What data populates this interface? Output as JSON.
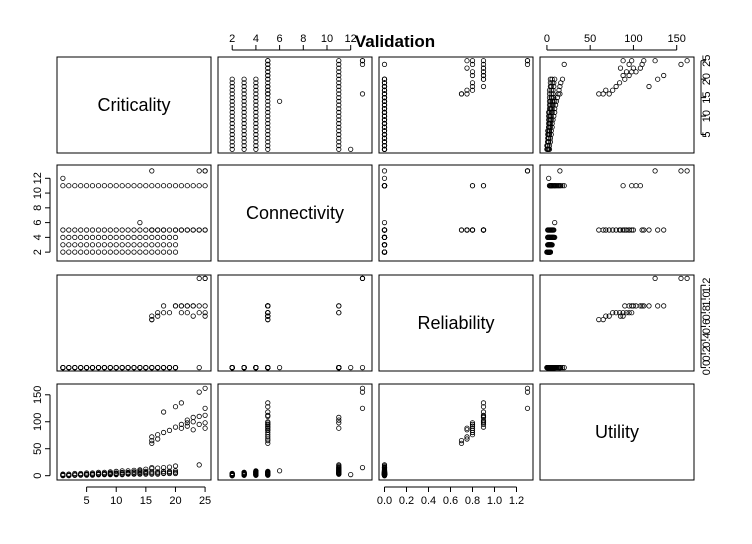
{
  "chart_data": {
    "type": "scatter",
    "title": "Validation",
    "variables": [
      "Criticality",
      "Connectivity",
      "Reliability",
      "Utility"
    ],
    "axes": [
      {
        "range": [
          0,
          26
        ],
        "ticks": [
          5,
          10,
          15,
          20,
          25
        ],
        "tick_labels": [
          "5",
          "10",
          "15",
          "20",
          "25"
        ]
      },
      {
        "range": [
          0.8,
          13.8
        ],
        "ticks": [
          2,
          4,
          6,
          8,
          10,
          12
        ],
        "tick_labels": [
          "2",
          "4",
          "6",
          "8",
          "10",
          "12"
        ]
      },
      {
        "range": [
          -0.05,
          1.35
        ],
        "ticks": [
          0.0,
          0.2,
          0.4,
          0.6,
          0.8,
          1.0,
          1.2
        ],
        "tick_labels": [
          "0.0",
          "0.2",
          "0.4",
          "0.6",
          "0.8",
          "1.0",
          "1.2"
        ]
      },
      {
        "range": [
          -8,
          170
        ],
        "ticks": [
          0,
          50,
          100,
          150
        ],
        "tick_labels": [
          "0",
          "50",
          "100",
          "150"
        ]
      }
    ],
    "axis_placement": {
      "top": [
        1,
        3
      ],
      "bottom": [
        0,
        2
      ],
      "left": [
        1,
        3
      ],
      "right": [
        0,
        2
      ]
    },
    "points": [
      [
        1,
        2,
        0,
        0
      ],
      [
        1,
        3,
        0,
        1
      ],
      [
        1,
        4,
        0,
        1
      ],
      [
        1,
        5,
        0,
        1
      ],
      [
        1,
        11,
        0,
        3
      ],
      [
        1,
        12,
        0,
        2
      ],
      [
        2,
        2,
        0,
        0
      ],
      [
        2,
        3,
        0,
        1
      ],
      [
        2,
        4,
        0,
        1
      ],
      [
        2,
        5,
        0,
        1
      ],
      [
        2,
        11,
        0,
        3
      ],
      [
        3,
        2,
        0,
        1
      ],
      [
        3,
        3,
        0,
        1
      ],
      [
        3,
        4,
        0,
        1
      ],
      [
        3,
        5,
        0,
        2
      ],
      [
        3,
        11,
        0,
        4
      ],
      [
        4,
        2,
        0,
        1
      ],
      [
        4,
        3,
        0,
        2
      ],
      [
        4,
        4,
        0,
        2
      ],
      [
        4,
        5,
        0,
        2
      ],
      [
        4,
        11,
        0,
        4
      ],
      [
        5,
        2,
        0,
        1
      ],
      [
        5,
        3,
        0,
        2
      ],
      [
        5,
        4,
        0,
        2
      ],
      [
        5,
        5,
        0,
        3
      ],
      [
        5,
        11,
        0,
        5
      ],
      [
        6,
        2,
        0,
        1
      ],
      [
        6,
        3,
        0,
        2
      ],
      [
        6,
        4,
        0,
        3
      ],
      [
        6,
        5,
        0,
        3
      ],
      [
        6,
        11,
        0,
        5
      ],
      [
        7,
        2,
        0,
        2
      ],
      [
        7,
        3,
        0,
        2
      ],
      [
        7,
        4,
        0,
        3
      ],
      [
        7,
        5,
        0,
        4
      ],
      [
        7,
        11,
        0,
        6
      ],
      [
        8,
        2,
        0,
        2
      ],
      [
        8,
        3,
        0,
        3
      ],
      [
        8,
        4,
        0,
        3
      ],
      [
        8,
        5,
        0,
        4
      ],
      [
        8,
        11,
        0,
        6
      ],
      [
        9,
        2,
        0,
        2
      ],
      [
        9,
        3,
        0,
        3
      ],
      [
        9,
        4,
        0,
        4
      ],
      [
        9,
        5,
        0,
        5
      ],
      [
        9,
        11,
        0,
        7
      ],
      [
        10,
        2,
        0,
        2
      ],
      [
        10,
        3,
        0,
        3
      ],
      [
        10,
        4,
        0,
        4
      ],
      [
        10,
        5,
        0,
        5
      ],
      [
        10,
        11,
        0,
        8
      ],
      [
        11,
        2,
        0,
        2
      ],
      [
        11,
        3,
        0,
        3
      ],
      [
        11,
        4,
        0,
        5
      ],
      [
        11,
        5,
        0,
        6
      ],
      [
        11,
        11,
        0,
        9
      ],
      [
        12,
        2,
        0,
        3
      ],
      [
        12,
        3,
        0,
        4
      ],
      [
        12,
        4,
        0,
        5
      ],
      [
        12,
        5,
        0,
        6
      ],
      [
        12,
        11,
        0,
        9
      ],
      [
        13,
        2,
        0,
        3
      ],
      [
        13,
        3,
        0,
        4
      ],
      [
        13,
        4,
        0,
        6
      ],
      [
        13,
        5,
        0,
        7
      ],
      [
        13,
        11,
        0,
        10
      ],
      [
        14,
        2,
        0,
        3
      ],
      [
        14,
        3,
        0,
        4
      ],
      [
        14,
        4,
        0,
        6
      ],
      [
        14,
        5,
        0,
        7
      ],
      [
        14,
        6,
        0,
        9
      ],
      [
        14,
        11,
        0,
        11
      ],
      [
        15,
        2,
        0,
        3
      ],
      [
        15,
        3,
        0,
        5
      ],
      [
        15,
        4,
        0,
        6
      ],
      [
        15,
        5,
        0,
        8
      ],
      [
        15,
        11,
        0,
        12
      ],
      [
        16,
        2,
        0,
        3
      ],
      [
        16,
        3,
        0,
        5
      ],
      [
        16,
        4,
        0,
        7
      ],
      [
        16,
        5,
        0.7,
        60
      ],
      [
        16,
        5,
        0.7,
        65
      ],
      [
        16,
        5,
        0.75,
        72
      ],
      [
        16,
        11,
        0,
        13
      ],
      [
        16,
        13,
        0,
        15
      ],
      [
        17,
        2,
        0,
        3
      ],
      [
        17,
        3,
        0,
        5
      ],
      [
        17,
        4,
        0,
        7
      ],
      [
        17,
        5,
        0.75,
        68
      ],
      [
        17,
        5,
        0.8,
        76
      ],
      [
        17,
        11,
        0,
        14
      ],
      [
        18,
        2,
        0,
        4
      ],
      [
        18,
        3,
        0,
        5
      ],
      [
        18,
        4,
        0,
        8
      ],
      [
        18,
        5,
        0.8,
        80
      ],
      [
        18,
        5,
        0.9,
        118
      ],
      [
        18,
        11,
        0,
        15
      ],
      [
        19,
        2,
        0,
        4
      ],
      [
        19,
        3,
        0,
        6
      ],
      [
        19,
        4,
        0,
        8
      ],
      [
        19,
        5,
        0.8,
        84
      ],
      [
        19,
        11,
        0,
        16
      ],
      [
        20,
        2,
        0,
        4
      ],
      [
        20,
        3,
        0,
        6
      ],
      [
        20,
        4,
        0,
        9
      ],
      [
        20,
        5,
        0.9,
        90
      ],
      [
        20,
        5,
        0.9,
        128
      ],
      [
        20,
        11,
        0,
        18
      ],
      [
        21,
        5,
        0.9,
        95
      ],
      [
        21,
        5,
        0.9,
        135
      ],
      [
        21,
        11,
        0.8,
        88
      ],
      [
        22,
        5,
        0.8,
        92
      ],
      [
        22,
        5,
        0.9,
        98
      ],
      [
        22,
        11,
        0.9,
        103
      ],
      [
        23,
        5,
        0.75,
        85
      ],
      [
        23,
        5,
        0.9,
        100
      ],
      [
        23,
        11,
        0.9,
        108
      ],
      [
        24,
        5,
        0.8,
        95
      ],
      [
        24,
        5,
        0.9,
        110
      ],
      [
        24,
        11,
        0,
        20
      ],
      [
        24,
        13,
        1.3,
        155
      ],
      [
        25,
        5,
        0.75,
        88
      ],
      [
        25,
        5,
        0.9,
        112
      ],
      [
        25,
        11,
        0.8,
        98
      ],
      [
        25,
        13,
        1.3,
        162
      ],
      [
        25,
        13,
        1.3,
        125
      ]
    ]
  }
}
